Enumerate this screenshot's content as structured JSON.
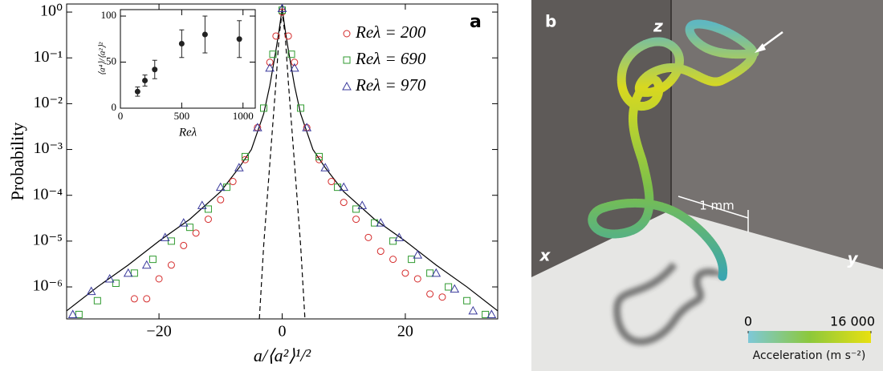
{
  "chart_data": [
    {
      "type": "scatter",
      "panel_label": "a",
      "y_label": "Probability",
      "x_label": "a/⟨a²⟩¹/²",
      "xlim": [
        -35,
        35
      ],
      "ylim": [
        2e-07,
        1.5
      ],
      "yscale": "log",
      "legend": "upper right",
      "xticks": [
        {
          "value": -20,
          "label": "−20"
        },
        0,
        20
      ],
      "yticks": [
        {
          "value": 1,
          "label": "10⁰"
        },
        {
          "value": 0.1,
          "label": "10⁻¹"
        },
        {
          "value": 0.01,
          "label": "10⁻²"
        },
        {
          "value": 0.001,
          "label": "10⁻³"
        },
        {
          "value": 0.0001,
          "label": "10⁻⁴"
        },
        {
          "value": 1e-05,
          "label": "10⁻⁵"
        },
        {
          "value": 1e-06,
          "label": "10⁻⁶"
        }
      ],
      "series": [
        {
          "name": "Reλ = 200",
          "color": "#d42a2a",
          "marker": "circle",
          "x": [
            -24,
            -22,
            -20,
            -18,
            -16,
            -14,
            -12,
            -10,
            -8,
            -6,
            -4,
            -2,
            -1,
            0,
            1,
            2,
            4,
            6,
            8,
            10,
            12,
            14,
            16,
            18,
            20,
            22,
            24,
            26
          ],
          "y": [
            5.5e-07,
            5.5e-07,
            1.5e-06,
            3e-06,
            8e-06,
            1.5e-05,
            3e-05,
            8e-05,
            0.0002,
            0.0006,
            0.003,
            0.08,
            0.3,
            1,
            0.3,
            0.08,
            0.003,
            0.0006,
            0.0002,
            7e-05,
            3e-05,
            1.2e-05,
            6e-06,
            4e-06,
            2e-06,
            1.5e-06,
            7e-07,
            6e-07
          ]
        },
        {
          "name": "Reλ = 690",
          "color": "#2f9a2f",
          "marker": "square",
          "x": [
            -33,
            -30,
            -27,
            -24,
            -21,
            -18,
            -15,
            -12,
            -9,
            -6,
            -3,
            -1.5,
            0,
            1.5,
            3,
            6,
            9,
            12,
            15,
            18,
            21,
            24,
            27,
            30,
            33
          ],
          "y": [
            2.5e-07,
            5e-07,
            1.2e-06,
            2e-06,
            4e-06,
            1e-05,
            2e-05,
            5e-05,
            0.00015,
            0.0007,
            0.008,
            0.12,
            1.1,
            0.12,
            0.008,
            0.0007,
            0.00015,
            5e-05,
            2.5e-05,
            1e-05,
            4e-06,
            2e-06,
            1e-06,
            5e-07,
            2.5e-07
          ]
        },
        {
          "name": "Reλ = 970",
          "color": "#3a3a9c",
          "marker": "triangle",
          "x": [
            -34,
            -31,
            -28,
            -25,
            -22,
            -19,
            -16,
            -13,
            -10,
            -7,
            -4,
            -2,
            0,
            2,
            4,
            7,
            10,
            13,
            16,
            19,
            22,
            25,
            28,
            31,
            34
          ],
          "y": [
            2.5e-07,
            8e-07,
            1.5e-06,
            2e-06,
            3e-06,
            1.2e-05,
            2.5e-05,
            6e-05,
            0.00015,
            0.0004,
            0.003,
            0.06,
            1.2,
            0.06,
            0.003,
            0.0004,
            0.00015,
            6e-05,
            2.5e-05,
            1.2e-05,
            5e-06,
            2e-06,
            9e-07,
            3e-07,
            2.5e-07
          ]
        }
      ],
      "lines": [
        {
          "dash": false,
          "color": "#000000",
          "x": [
            -35,
            -30,
            -25,
            -20,
            -15,
            -10,
            -7,
            -5,
            -3,
            -2,
            -1,
            -0.5,
            0,
            0.5,
            1,
            2,
            3,
            5,
            7,
            10,
            15,
            20,
            25,
            30,
            35
          ],
          "y": [
            3e-07,
            1e-06,
            3e-06,
            1e-05,
            3e-05,
            0.00012,
            0.0004,
            0.001,
            0.006,
            0.025,
            0.15,
            0.4,
            1.2,
            0.4,
            0.15,
            0.025,
            0.006,
            0.001,
            0.0004,
            0.00012,
            3e-05,
            1e-05,
            3e-06,
            1e-06,
            3e-07
          ]
        },
        {
          "dash": true,
          "color": "#000000",
          "x": [
            -3.7,
            -3,
            -2,
            -1,
            -0.5,
            0,
            0.5,
            1,
            2,
            3,
            3.7
          ],
          "y": [
            2e-07,
            8e-06,
            0.0005,
            0.03,
            0.3,
            1,
            0.3,
            0.03,
            0.0005,
            8e-06,
            2e-07
          ]
        }
      ]
    },
    {
      "type": "errorbar",
      "x_label": "Reλ",
      "y_label": "⟨a⁴⟩/⟨a²⟩²",
      "xlim": [
        0,
        1100
      ],
      "ylim": [
        0,
        107
      ],
      "xticks": [
        0,
        500,
        1000
      ],
      "yticks": [
        0,
        50,
        100
      ],
      "color": "#222222",
      "x": [
        140,
        200,
        280,
        500,
        690,
        970
      ],
      "values": [
        18,
        30,
        42,
        70,
        80,
        75
      ],
      "errors": [
        5,
        6,
        10,
        15,
        20,
        20
      ]
    }
  ],
  "image_panel": {
    "panel_label": "b",
    "axis_labels": {
      "x": "x",
      "y": "y",
      "z": "z"
    },
    "scale_bar": "1 mm",
    "colorbar": {
      "label": "Acceleration (m s⁻²)",
      "lim": [
        0,
        16000
      ],
      "ticks": [
        0,
        {
          "value": 16000,
          "label": "16 000"
        }
      ]
    }
  }
}
